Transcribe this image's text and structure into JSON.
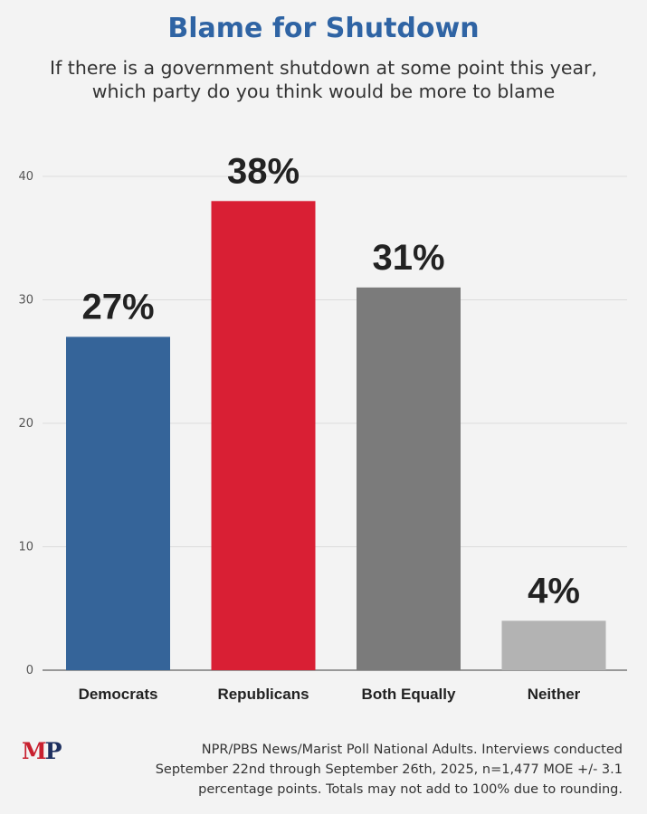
{
  "chart_data": {
    "type": "bar",
    "title": "Blame for Shutdown",
    "subtitle": [
      "If there is a government shutdown at some point this year,",
      "which party do you think would be more to blame"
    ],
    "categories": [
      "Democrats",
      "Republicans",
      "Both Equally",
      "Neither"
    ],
    "values": [
      27,
      38,
      31,
      4
    ],
    "data_labels": [
      "27%",
      "38%",
      "31%",
      "4%"
    ],
    "colors": [
      "#356499",
      "#d91f34",
      "#7b7b7b",
      "#b3b3b3"
    ],
    "ylim": [
      0,
      40
    ],
    "yticks": [
      0,
      10,
      20,
      30,
      40
    ],
    "ytick_labels": [
      "0",
      "10",
      "20",
      "30",
      "40"
    ],
    "xlabel": "",
    "ylabel": "",
    "grid": true
  },
  "footer": {
    "logo_m": "M",
    "logo_p": "P",
    "source_lines": [
      "NPR/PBS News/Marist Poll National Adults. Interviews conducted",
      "September 22nd through September 26th, 2025, n=1,477 MOE +/- 3.1",
      "percentage points. Totals may not add to 100% due to rounding."
    ]
  }
}
